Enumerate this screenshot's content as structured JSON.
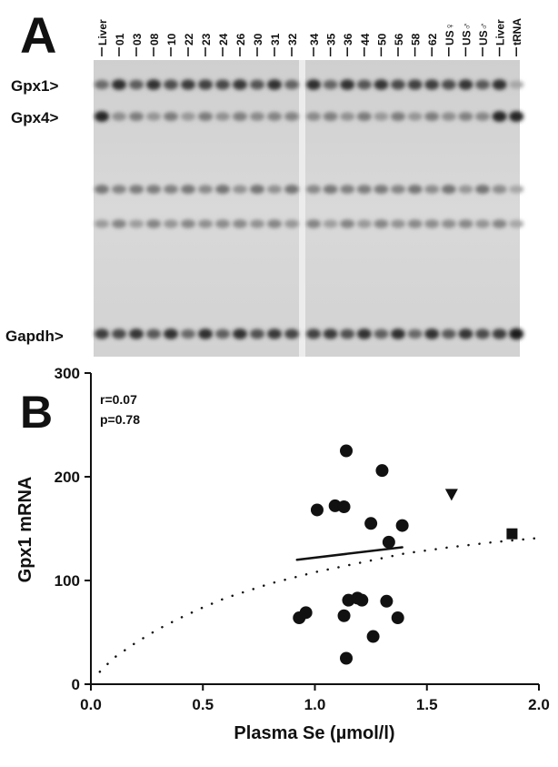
{
  "panel_a": {
    "label": "A",
    "lanes": [
      "Liver",
      "01",
      "03",
      "08",
      "10",
      "22",
      "23",
      "24",
      "26",
      "30",
      "31",
      "32",
      "34",
      "35",
      "36",
      "44",
      "50",
      "56",
      "58",
      "62",
      "US♀",
      "US♂",
      "US♂",
      "Liver",
      "tRNA"
    ],
    "bands": [
      "Gpx1>",
      "Gpx4>",
      "Gapdh>"
    ]
  },
  "chart_data": {
    "type": "scatter",
    "panel_label": "B",
    "x_label": "Plasma Se (µmol/l)",
    "y_label": "Gpx1 mRNA",
    "annotations": [
      "r=0.07",
      "p=0.78"
    ],
    "xlim": [
      0,
      2
    ],
    "ylim": [
      0,
      300
    ],
    "xticks": [
      {
        "value": 0,
        "label": "0.0"
      },
      0.5,
      {
        "value": 1,
        "label": "1.0"
      },
      1.5,
      {
        "value": 2,
        "label": "2.0"
      }
    ],
    "yticks": [
      0,
      100,
      200,
      300
    ],
    "series": [
      {
        "marker": "circle",
        "color": "#111111",
        "x": [
          0.93,
          0.96,
          1.01,
          1.09,
          1.13,
          1.14,
          1.25,
          1.3,
          1.33,
          1.39,
          1.15,
          1.19,
          1.21,
          1.13,
          1.32,
          1.26,
          1.14,
          1.37
        ],
        "values": [
          64,
          69,
          168,
          172,
          171,
          225,
          155,
          206,
          137,
          153,
          81,
          83,
          81,
          66,
          80,
          46,
          25,
          64
        ]
      },
      {
        "marker": "triangle",
        "color": "#111111",
        "x": [
          1.61
        ],
        "values": [
          183
        ]
      },
      {
        "marker": "square",
        "color": "#111111",
        "x": [
          1.88
        ],
        "values": [
          145
        ]
      }
    ],
    "trend": {
      "x": [
        0.92,
        1.39
      ],
      "values": [
        120,
        132
      ],
      "style": "solid"
    },
    "fit": {
      "x": [
        0.04,
        0.1,
        0.2,
        0.3,
        0.4,
        0.5,
        0.6,
        0.8,
        1.0,
        1.2,
        1.4,
        1.6,
        1.8,
        2.0
      ],
      "values": [
        12,
        25,
        40,
        53,
        64,
        74,
        83,
        97,
        108,
        117,
        126,
        132,
        137,
        141
      ],
      "style": "dotted"
    }
  }
}
